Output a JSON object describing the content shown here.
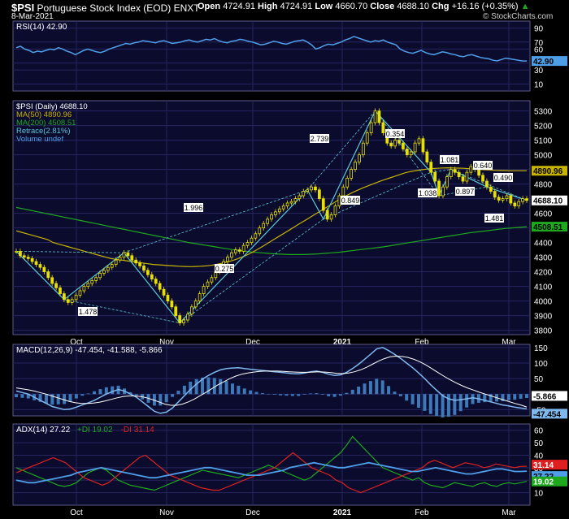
{
  "header": {
    "symbol": "$PSI",
    "name": "Portuguese Stock Index (EOD)",
    "exchange": "ENXT",
    "date": "8-Mar-2021",
    "open_label": "Open",
    "open": "4724.91",
    "high_label": "High",
    "high": "4724.91",
    "low_label": "Low",
    "low": "4660.70",
    "close_label": "Close",
    "close": "4688.10",
    "chg_label": "Chg",
    "chg": "+16.16 (+0.35%)",
    "watermark": "© StockCharts.com",
    "up_icon": "triangle-up-icon"
  },
  "colors": {
    "background": "#000000",
    "panel": "#0b0b2e",
    "grid": "#26265e",
    "rsi": "#4f9fe8",
    "candle": "#e8e000",
    "ma50": "#c8b400",
    "ma200": "#1ea81e",
    "retrace": "#5bc8d8",
    "macd": "#7fb8ee",
    "signal": "#ffffff",
    "hist": "#3d78b8",
    "adx": "#4f9fe8",
    "plus_di": "#1ea81e",
    "minus_di": "#e02020"
  },
  "chart_data": [
    {
      "type": "line",
      "panel": "rsi",
      "legend": "RSI(14) 42.90",
      "y_ticks": [
        "90",
        "70",
        "60",
        "40",
        "30",
        "10"
      ],
      "last_value_label": "42.90",
      "ylim": [
        0,
        100
      ],
      "values": [
        62,
        64,
        60,
        58,
        55,
        57,
        56,
        58,
        60,
        59,
        62,
        60,
        57,
        55,
        52,
        55,
        58,
        60,
        58,
        56,
        55,
        57,
        60,
        62,
        64,
        66,
        68,
        67,
        69,
        70,
        72,
        71,
        70,
        69,
        71,
        72,
        70,
        68,
        69,
        70,
        72,
        73,
        71,
        70,
        72,
        74,
        73,
        75,
        72,
        70,
        69,
        71,
        72,
        74,
        73,
        71,
        70,
        68,
        66,
        67,
        69,
        71,
        70,
        68,
        67,
        69,
        71,
        72,
        73,
        70,
        66,
        60,
        62,
        65,
        67,
        66,
        68,
        70,
        73,
        75,
        78,
        76,
        74,
        72,
        70,
        72,
        71,
        73,
        70,
        68,
        66,
        60,
        57,
        55,
        54,
        56,
        58,
        55,
        53,
        52,
        54,
        56,
        55,
        53,
        52,
        50,
        49,
        51,
        52,
        50,
        48,
        47,
        46,
        44,
        43,
        45,
        47,
        46,
        45,
        44,
        43,
        42.9
      ]
    },
    {
      "type": "candlestick",
      "panel": "price",
      "legend": [
        "$PSI (Daily) 4688.10",
        "MA(50) 4890.96",
        "MA(200) 4508.51",
        "Retrace(2.81%)",
        "Volume undef"
      ],
      "y_ticks": [
        "5300",
        "5200",
        "5100",
        "5000",
        "4900",
        "4800",
        "4700",
        "4600",
        "4500",
        "4400",
        "4300",
        "4200",
        "4100",
        "4000",
        "3900",
        "3800"
      ],
      "x_labels": [
        "Oct",
        "Nov",
        "Dec",
        "2021",
        "Feb",
        "Mar"
      ],
      "ylim": [
        3770,
        5370
      ],
      "last_value_labels": [
        "4890.96",
        "4688.10",
        "4508.51"
      ],
      "closes": [
        4340,
        4310,
        4300,
        4290,
        4270,
        4250,
        4230,
        4200,
        4160,
        4120,
        4090,
        4050,
        4010,
        3990,
        4010,
        4040,
        4070,
        4100,
        4120,
        4140,
        4160,
        4190,
        4210,
        4230,
        4250,
        4280,
        4300,
        4330,
        4310,
        4280,
        4260,
        4240,
        4210,
        4180,
        4150,
        4120,
        4080,
        4040,
        4000,
        3960,
        3900,
        3850,
        3870,
        3910,
        3960,
        4000,
        4050,
        4100,
        4130,
        4160,
        4200,
        4240,
        4270,
        4300,
        4330,
        4350,
        4340,
        4380,
        4400,
        4430,
        4460,
        4500,
        4530,
        4560,
        4590,
        4610,
        4630,
        4650,
        4670,
        4680,
        4700,
        4720,
        4750,
        4760,
        4780,
        4760,
        4700,
        4620,
        4560,
        4590,
        4650,
        4720,
        4780,
        4840,
        4900,
        4950,
        5000,
        5080,
        5150,
        5220,
        5300,
        5220,
        5150,
        5080,
        5060,
        5100,
        5080,
        5040,
        5000,
        5020,
        5080,
        5110,
        5020,
        4950,
        4880,
        4820,
        4720,
        4780,
        4850,
        4900,
        4880,
        4850,
        4820,
        4880,
        4920,
        4900,
        4860,
        4820,
        4780,
        4750,
        4710,
        4690,
        4700,
        4720,
        4670,
        4650,
        4680,
        4700,
        4688.1
      ],
      "ma50": [
        4480,
        4470,
        4460,
        4450,
        4440,
        4430,
        4420,
        4400,
        4390,
        4380,
        4370,
        4360,
        4350,
        4340,
        4330,
        4320,
        4310,
        4300,
        4290,
        4285,
        4280,
        4275,
        4270,
        4265,
        4260,
        4255,
        4250,
        4248,
        4245,
        4242,
        4240,
        4238,
        4236,
        4235,
        4236,
        4238,
        4240,
        4244,
        4250,
        4258,
        4266,
        4276,
        4288,
        4302,
        4318,
        4336,
        4356,
        4378,
        4400,
        4422,
        4444,
        4466,
        4488,
        4510,
        4532,
        4554,
        4576,
        4598,
        4620,
        4642,
        4664,
        4686,
        4706,
        4726,
        4744,
        4760,
        4776,
        4790,
        4804,
        4818,
        4830,
        4842,
        4854,
        4866,
        4878,
        4886,
        4892,
        4898,
        4902,
        4906,
        4908,
        4910,
        4911,
        4910,
        4909,
        4908,
        4905,
        4902,
        4900,
        4898,
        4896,
        4894,
        4893,
        4892,
        4891,
        4891,
        4891,
        4890.96
      ],
      "ma200": [
        4640,
        4630,
        4620,
        4610,
        4600,
        4590,
        4580,
        4570,
        4560,
        4550,
        4540,
        4530,
        4520,
        4510,
        4500,
        4490,
        4480,
        4470,
        4460,
        4450,
        4440,
        4430,
        4420,
        4410,
        4400,
        4392,
        4384,
        4376,
        4368,
        4360,
        4352,
        4346,
        4340,
        4334,
        4330,
        4326,
        4322,
        4320,
        4318,
        4318,
        4318,
        4320,
        4322,
        4326,
        4330,
        4334,
        4340,
        4346,
        4352,
        4358,
        4364,
        4370,
        4378,
        4386,
        4394,
        4402,
        4410,
        4418,
        4426,
        4434,
        4442,
        4450,
        4458,
        4466,
        4472,
        4478,
        4484,
        4490,
        4496,
        4500,
        4504,
        4508.51
      ],
      "retrace_labels": [
        "1.478",
        "0.275",
        "1.996",
        "2.739",
        "0.354",
        "0.849",
        "1.081",
        "0.640",
        "1.038",
        "0.897",
        "0.490",
        "1.481"
      ]
    },
    {
      "type": "line",
      "panel": "macd",
      "legend": "MACD(12,26,9) -47.454, -41.588, -5.866",
      "y_ticks": [
        "150",
        "100",
        "50",
        "0",
        "-50"
      ],
      "ylim": [
        -70,
        160
      ],
      "last_value_labels": [
        "-5.866",
        "-47.454"
      ],
      "macd": [
        10,
        5,
        0,
        -10,
        -20,
        -30,
        -40,
        -45,
        -50,
        -48,
        -42,
        -35,
        -28,
        -20,
        -10,
        0,
        8,
        15,
        10,
        0,
        -10,
        -25,
        -40,
        -55,
        -62,
        -58,
        -45,
        -25,
        -5,
        15,
        32,
        48,
        60,
        70,
        78,
        82,
        84,
        85,
        82,
        80,
        78,
        76,
        74,
        72,
        70,
        68,
        66,
        65,
        68,
        72,
        74,
        70,
        64,
        60,
        62,
        70,
        82,
        96,
        112,
        128,
        145,
        150,
        140,
        128,
        115,
        100,
        85,
        68,
        50,
        30,
        12,
        -5,
        -15,
        -20,
        -18,
        -15,
        -12,
        -15,
        -20,
        -25,
        -30,
        -35,
        -38,
        -42,
        -45,
        -47.454
      ],
      "signal": [
        20,
        17,
        14,
        10,
        5,
        0,
        -6,
        -12,
        -18,
        -24,
        -28,
        -30,
        -30,
        -29,
        -26,
        -22,
        -17,
        -12,
        -8,
        -6,
        -6,
        -8,
        -12,
        -18,
        -25,
        -32,
        -36,
        -36,
        -32,
        -25,
        -16,
        -5,
        6,
        18,
        30,
        40,
        50,
        58,
        64,
        68,
        71,
        73,
        74,
        74,
        74,
        73,
        72,
        71,
        70,
        70,
        71,
        72,
        71,
        69,
        67,
        66,
        68,
        72,
        78,
        86,
        96,
        106,
        114,
        120,
        122,
        121,
        118,
        112,
        104,
        94,
        82,
        70,
        58,
        47,
        37,
        28,
        20,
        13,
        6,
        0,
        -6,
        -12,
        -18,
        -24,
        -30,
        -35,
        -41.588
      ]
    },
    {
      "type": "line",
      "panel": "adx",
      "legend": [
        "ADX(14) 27.22",
        "+DI 19.02",
        "-DI 31.14"
      ],
      "y_ticks": [
        "60",
        "50",
        "40",
        "30",
        "20",
        "10"
      ],
      "ylim": [
        0,
        65
      ],
      "last_value_labels": [
        "31.14",
        "27.22",
        "19.02"
      ],
      "adx": [
        20,
        19,
        18,
        18,
        19,
        20,
        21,
        22,
        23,
        24,
        26,
        27,
        28,
        29,
        30,
        29,
        28,
        27,
        26,
        25,
        24,
        23,
        22,
        22,
        23,
        24,
        25,
        26,
        27,
        28,
        29,
        30,
        30,
        29,
        28,
        27,
        26,
        25,
        24,
        24,
        24,
        25,
        26,
        27,
        28,
        30,
        31,
        32,
        33,
        34,
        33,
        32,
        31,
        30,
        30,
        31,
        32,
        33,
        34,
        33,
        32,
        31,
        30,
        29,
        28,
        27,
        27,
        28,
        29,
        30,
        29,
        28,
        27,
        26,
        25,
        25,
        26,
        27,
        28,
        29,
        29,
        28,
        27,
        27,
        27.22
      ],
      "plus_di": [
        30,
        28,
        26,
        24,
        22,
        20,
        18,
        16,
        15,
        16,
        18,
        22,
        26,
        28,
        30,
        28,
        24,
        20,
        18,
        16,
        15,
        14,
        13,
        12,
        14,
        16,
        18,
        20,
        22,
        24,
        26,
        28,
        27,
        26,
        25,
        24,
        23,
        22,
        24,
        26,
        28,
        30,
        32,
        30,
        28,
        26,
        24,
        22,
        20,
        22,
        26,
        30,
        34,
        38,
        42,
        48,
        55,
        50,
        45,
        40,
        35,
        30,
        28,
        26,
        24,
        22,
        20,
        22,
        18,
        16,
        15,
        14,
        16,
        18,
        17,
        16,
        15,
        17,
        18,
        16,
        15,
        17,
        18,
        17,
        18,
        19.02
      ],
      "minus_di": [
        26,
        28,
        30,
        32,
        34,
        36,
        38,
        36,
        34,
        30,
        26,
        22,
        20,
        18,
        16,
        18,
        22,
        26,
        30,
        34,
        38,
        40,
        36,
        32,
        28,
        24,
        22,
        20,
        18,
        16,
        14,
        13,
        12,
        12,
        14,
        16,
        18,
        20,
        22,
        24,
        26,
        28,
        30,
        34,
        38,
        42,
        38,
        34,
        30,
        28,
        26,
        24,
        20,
        18,
        14,
        12,
        10,
        12,
        14,
        16,
        18,
        20,
        22,
        24,
        26,
        28,
        30,
        34,
        36,
        34,
        32,
        30,
        32,
        34,
        33,
        32,
        30,
        31,
        33,
        32,
        31,
        30,
        31,
        31.14
      ]
    }
  ]
}
